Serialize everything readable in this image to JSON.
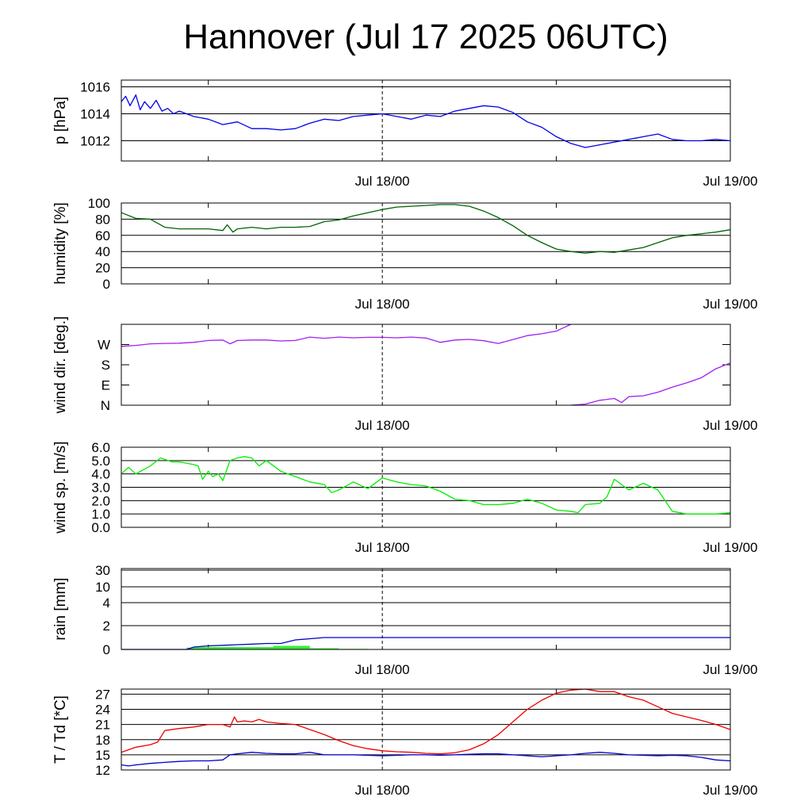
{
  "title": "Hannover (Jul 17 2025 06UTC)",
  "colors": {
    "pressure": "#0000ee",
    "humidity": "#006400",
    "wind_dir": "#a020f0",
    "wind_speed": "#00ee00",
    "rain_line": "#0000cc",
    "rain_bar": "#33ee33",
    "temperature": "#ee0000",
    "dewpoint": "#0000cc"
  },
  "chart_data": [
    {
      "type": "line",
      "ylabel": "p [hPa]",
      "ylim": [
        1010.5,
        1016.5
      ],
      "yticks": [
        1012,
        1014,
        1016
      ],
      "ytick_labels": [
        "1012",
        "1014",
        "1016"
      ],
      "xtick_labels": [
        "Jul 18/00",
        "Jul 19/00"
      ],
      "x_range_hours": [
        0,
        42
      ],
      "series": [
        {
          "color_key": "pressure",
          "x": [
            0,
            0.3,
            0.6,
            1.0,
            1.3,
            1.6,
            2.0,
            2.4,
            2.8,
            3.2,
            3.6,
            4,
            5,
            6,
            7,
            8,
            9,
            10,
            11,
            12,
            13,
            14,
            15,
            16,
            17,
            18,
            19,
            20,
            21,
            22,
            23,
            24,
            25,
            26,
            27,
            28,
            29,
            30,
            31,
            32,
            33,
            34,
            35,
            36,
            37,
            38,
            39,
            40,
            41,
            42
          ],
          "y": [
            1014.9,
            1015.3,
            1014.6,
            1015.4,
            1014.3,
            1014.9,
            1014.4,
            1015.0,
            1014.2,
            1014.4,
            1014.0,
            1014.2,
            1013.8,
            1013.6,
            1013.2,
            1013.4,
            1012.9,
            1012.9,
            1012.8,
            1012.9,
            1013.3,
            1013.6,
            1013.5,
            1013.8,
            1013.9,
            1014.0,
            1013.8,
            1013.6,
            1013.9,
            1013.8,
            1014.2,
            1014.4,
            1014.6,
            1014.5,
            1014.1,
            1013.4,
            1013.0,
            1012.3,
            1011.8,
            1011.5,
            1011.7,
            1011.9,
            1012.1,
            1012.3,
            1012.5,
            1012.1,
            1012.0,
            1012.0,
            1012.1,
            1012.0
          ]
        }
      ]
    },
    {
      "type": "line",
      "ylabel": "humidity [%]",
      "ylim": [
        0,
        100
      ],
      "yticks": [
        0,
        20,
        40,
        60,
        80,
        100
      ],
      "ytick_labels": [
        "0",
        "20",
        "40",
        "60",
        "80",
        "100"
      ],
      "xtick_labels": [
        "Jul 18/00",
        "Jul 19/00"
      ],
      "x_range_hours": [
        0,
        42
      ],
      "series": [
        {
          "color_key": "humidity",
          "x": [
            0,
            1,
            2,
            3,
            4,
            5,
            6,
            7,
            7.3,
            7.7,
            8,
            9,
            10,
            11,
            12,
            13,
            14,
            15,
            16,
            17,
            18,
            19,
            20,
            21,
            22,
            23,
            24,
            25,
            26,
            27,
            28,
            29,
            30,
            31,
            32,
            33,
            34,
            35,
            36,
            37,
            38,
            39,
            40,
            41,
            42
          ],
          "y": [
            88,
            81,
            80,
            70,
            68,
            68,
            68,
            66,
            73,
            64,
            68,
            70,
            68,
            70,
            70,
            71,
            77,
            79,
            84,
            88,
            92,
            95,
            96,
            97,
            98,
            98,
            96,
            90,
            82,
            72,
            60,
            51,
            43,
            40,
            38,
            40,
            39,
            42,
            45,
            51,
            57,
            60,
            62,
            64,
            67
          ]
        }
      ]
    },
    {
      "type": "line",
      "ylabel": "wind dir. [deg.]",
      "ylim": [
        0,
        360
      ],
      "yticks": [
        0,
        90,
        180,
        270
      ],
      "ytick_labels": [
        "N",
        "E",
        "S",
        "W"
      ],
      "xtick_labels": [
        "Jul 18/00",
        "Jul 19/00"
      ],
      "x_range_hours": [
        0,
        42
      ],
      "series": [
        {
          "color_key": "wind_dir",
          "x": [
            0,
            1,
            2,
            3,
            4,
            5,
            6,
            7,
            7.5,
            8,
            9,
            10,
            11,
            12,
            13,
            14,
            15,
            16,
            17,
            18,
            19,
            20,
            21,
            22,
            23,
            24,
            25,
            26,
            27,
            28,
            29,
            30,
            30.5,
            31.0
          ],
          "y": [
            262,
            266,
            273,
            275,
            276,
            280,
            288,
            290,
            273,
            288,
            290,
            290,
            286,
            288,
            303,
            298,
            303,
            300,
            302,
            302,
            300,
            303,
            299,
            280,
            290,
            293,
            287,
            275,
            292,
            310,
            318,
            330,
            345,
            360
          ]
        },
        {
          "color_key": "wind_dir",
          "x": [
            31.0,
            32,
            33,
            34,
            34.5,
            35,
            36,
            37,
            38,
            39,
            40,
            41,
            42
          ],
          "y": [
            0,
            5,
            22,
            30,
            12,
            38,
            42,
            58,
            80,
            100,
            122,
            162,
            188
          ]
        }
      ]
    },
    {
      "type": "line",
      "ylabel": "wind sp. [m/s]",
      "ylim": [
        0,
        6
      ],
      "yticks": [
        0,
        1,
        2,
        3,
        4,
        5,
        6
      ],
      "ytick_labels": [
        "0.0",
        "1.0",
        "2.0",
        "3.0",
        "4.0",
        "5.0",
        "6.0"
      ],
      "xtick_labels": [
        "Jul 18/00",
        "Jul 19/00"
      ],
      "x_range_hours": [
        0,
        42
      ],
      "series": [
        {
          "color_key": "wind_speed",
          "x": [
            0,
            0.5,
            1,
            2,
            2.7,
            3.5,
            4,
            5,
            5.3,
            5.6,
            6,
            6.3,
            6.7,
            7,
            7.5,
            8,
            8.5,
            9,
            9.5,
            10,
            11,
            12,
            13,
            14,
            14.5,
            15,
            16,
            17,
            18,
            19,
            20,
            21,
            22,
            23,
            24,
            25,
            26,
            27,
            28,
            29,
            30,
            31,
            31.5,
            32,
            33,
            33.5,
            34,
            35,
            36,
            37,
            38,
            39,
            40,
            41,
            42
          ],
          "y": [
            4.0,
            4.5,
            4.0,
            4.6,
            5.2,
            4.9,
            4.9,
            4.7,
            4.6,
            3.6,
            4.2,
            3.8,
            4.0,
            3.5,
            5.0,
            5.2,
            5.3,
            5.2,
            4.6,
            5.0,
            4.2,
            3.8,
            3.4,
            3.2,
            2.6,
            2.8,
            3.4,
            2.9,
            3.7,
            3.4,
            3.2,
            3.1,
            2.7,
            2.1,
            2.0,
            1.7,
            1.7,
            1.8,
            2.1,
            1.8,
            1.3,
            1.2,
            1.1,
            1.7,
            1.8,
            2.3,
            3.6,
            2.8,
            3.3,
            2.8,
            1.2,
            1.0,
            1.0,
            1.0,
            1.1
          ]
        }
      ]
    },
    {
      "type": "line",
      "ylabel": "rain [mm]",
      "yticks": [
        0,
        2,
        4,
        10,
        30
      ],
      "ytick_labels": [
        "0",
        "2",
        "4",
        "10",
        "30"
      ],
      "xtick_labels": [
        "Jul 18/00",
        "Jul 19/00"
      ],
      "x_range_hours": [
        0,
        42
      ],
      "bars": {
        "color_key": "rain_bar",
        "x_start": [
          4.5,
          5,
          6,
          7,
          8,
          9,
          10,
          10.5,
          11,
          12,
          13,
          14,
          15,
          16
        ],
        "x_end": [
          5,
          6,
          7,
          8,
          9,
          10,
          10.5,
          11,
          12,
          13,
          14,
          15,
          16,
          17
        ],
        "y": [
          0.15,
          0.2,
          0.2,
          0.2,
          0.2,
          0.2,
          0.2,
          0.3,
          0.3,
          0.3,
          0.1,
          0.1,
          0.05,
          0.05
        ]
      },
      "series": [
        {
          "color_key": "rain_line",
          "x": [
            0,
            4.5,
            5,
            6,
            7,
            8,
            9,
            10,
            11,
            12,
            13,
            14,
            15,
            42
          ],
          "y": [
            0,
            0,
            0.2,
            0.3,
            0.35,
            0.4,
            0.45,
            0.5,
            0.5,
            0.8,
            0.9,
            1.0,
            1.0,
            1.0
          ]
        }
      ]
    },
    {
      "type": "line",
      "ylabel": "T / Td [*C]",
      "ylim": [
        12,
        28
      ],
      "yticks": [
        12,
        15,
        18,
        21,
        24,
        27
      ],
      "ytick_labels": [
        "12",
        "15",
        "18",
        "21",
        "24",
        "27"
      ],
      "xtick_labels": [
        "Jul 18/00",
        "Jul 19/00"
      ],
      "x_range_hours": [
        0,
        42
      ],
      "series": [
        {
          "color_key": "temperature",
          "x": [
            0,
            1,
            2,
            2.5,
            3,
            4,
            5,
            6,
            7,
            7.5,
            7.8,
            8,
            8.5,
            9,
            9.5,
            10,
            11,
            12,
            13,
            14,
            15,
            16,
            17,
            18,
            19,
            20,
            21,
            22,
            23,
            24,
            25,
            26,
            27,
            28,
            29,
            30,
            31,
            32,
            33,
            34,
            35,
            36,
            37,
            38,
            39,
            40,
            41,
            42
          ],
          "y": [
            15.5,
            16.5,
            17.0,
            17.5,
            19.8,
            20.2,
            20.5,
            21.0,
            21.0,
            20.5,
            22.5,
            21.5,
            21.7,
            21.5,
            22.0,
            21.5,
            21.2,
            21.0,
            20.0,
            19.0,
            17.8,
            16.8,
            16.2,
            15.8,
            15.6,
            15.5,
            15.3,
            15.2,
            15.4,
            16.0,
            17.2,
            19.0,
            21.5,
            24.0,
            25.8,
            27.2,
            27.8,
            28.0,
            27.5,
            27.5,
            26.5,
            25.8,
            24.5,
            23.2,
            22.5,
            21.8,
            21.0,
            20.0
          ]
        },
        {
          "color_key": "dewpoint",
          "x": [
            0,
            0.5,
            1,
            2,
            3,
            4,
            5,
            6,
            7,
            7.5,
            8,
            9,
            10,
            11,
            12,
            13,
            14,
            15,
            16,
            17,
            18,
            19,
            20,
            21,
            22,
            23,
            24,
            25,
            26,
            27,
            28,
            29,
            30,
            31,
            32,
            33,
            34,
            35,
            36,
            37,
            38,
            39,
            40,
            41,
            42
          ],
          "y": [
            13.0,
            12.8,
            13.0,
            13.3,
            13.5,
            13.7,
            13.8,
            13.8,
            14.0,
            15.0,
            15.2,
            15.5,
            15.3,
            15.2,
            15.2,
            15.5,
            15.0,
            15.0,
            15.0,
            14.9,
            14.8,
            14.9,
            15.0,
            15.0,
            14.9,
            15.0,
            15.1,
            15.2,
            15.2,
            15.0,
            14.8,
            14.6,
            14.8,
            15.0,
            15.3,
            15.5,
            15.3,
            15.0,
            14.9,
            14.8,
            14.9,
            14.8,
            14.5,
            14.0,
            13.8
          ]
        }
      ]
    }
  ]
}
